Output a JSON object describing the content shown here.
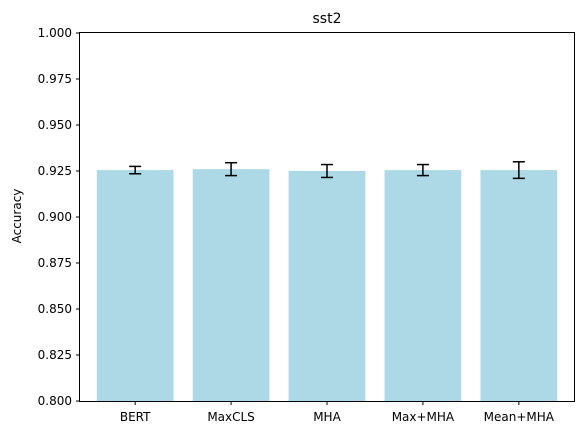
{
  "chart_data": {
    "type": "bar",
    "title": "sst2",
    "xlabel": "",
    "ylabel": "Accuracy",
    "categories": [
      "BERT",
      "MaxCLS",
      "MHA",
      "Max+MHA",
      "Mean+MHA"
    ],
    "values": [
      0.9255,
      0.926,
      0.925,
      0.9255,
      0.9255
    ],
    "errors": [
      0.002,
      0.0035,
      0.0035,
      0.003,
      0.0045
    ],
    "ylim": [
      0.8,
      1.0
    ],
    "yticks": [
      "0.800",
      "0.825",
      "0.850",
      "0.875",
      "0.900",
      "0.925",
      "0.950",
      "0.975",
      "1.000"
    ],
    "grid": false,
    "legend": false,
    "bar_color": "#add8e6",
    "error_color": "#000000"
  }
}
